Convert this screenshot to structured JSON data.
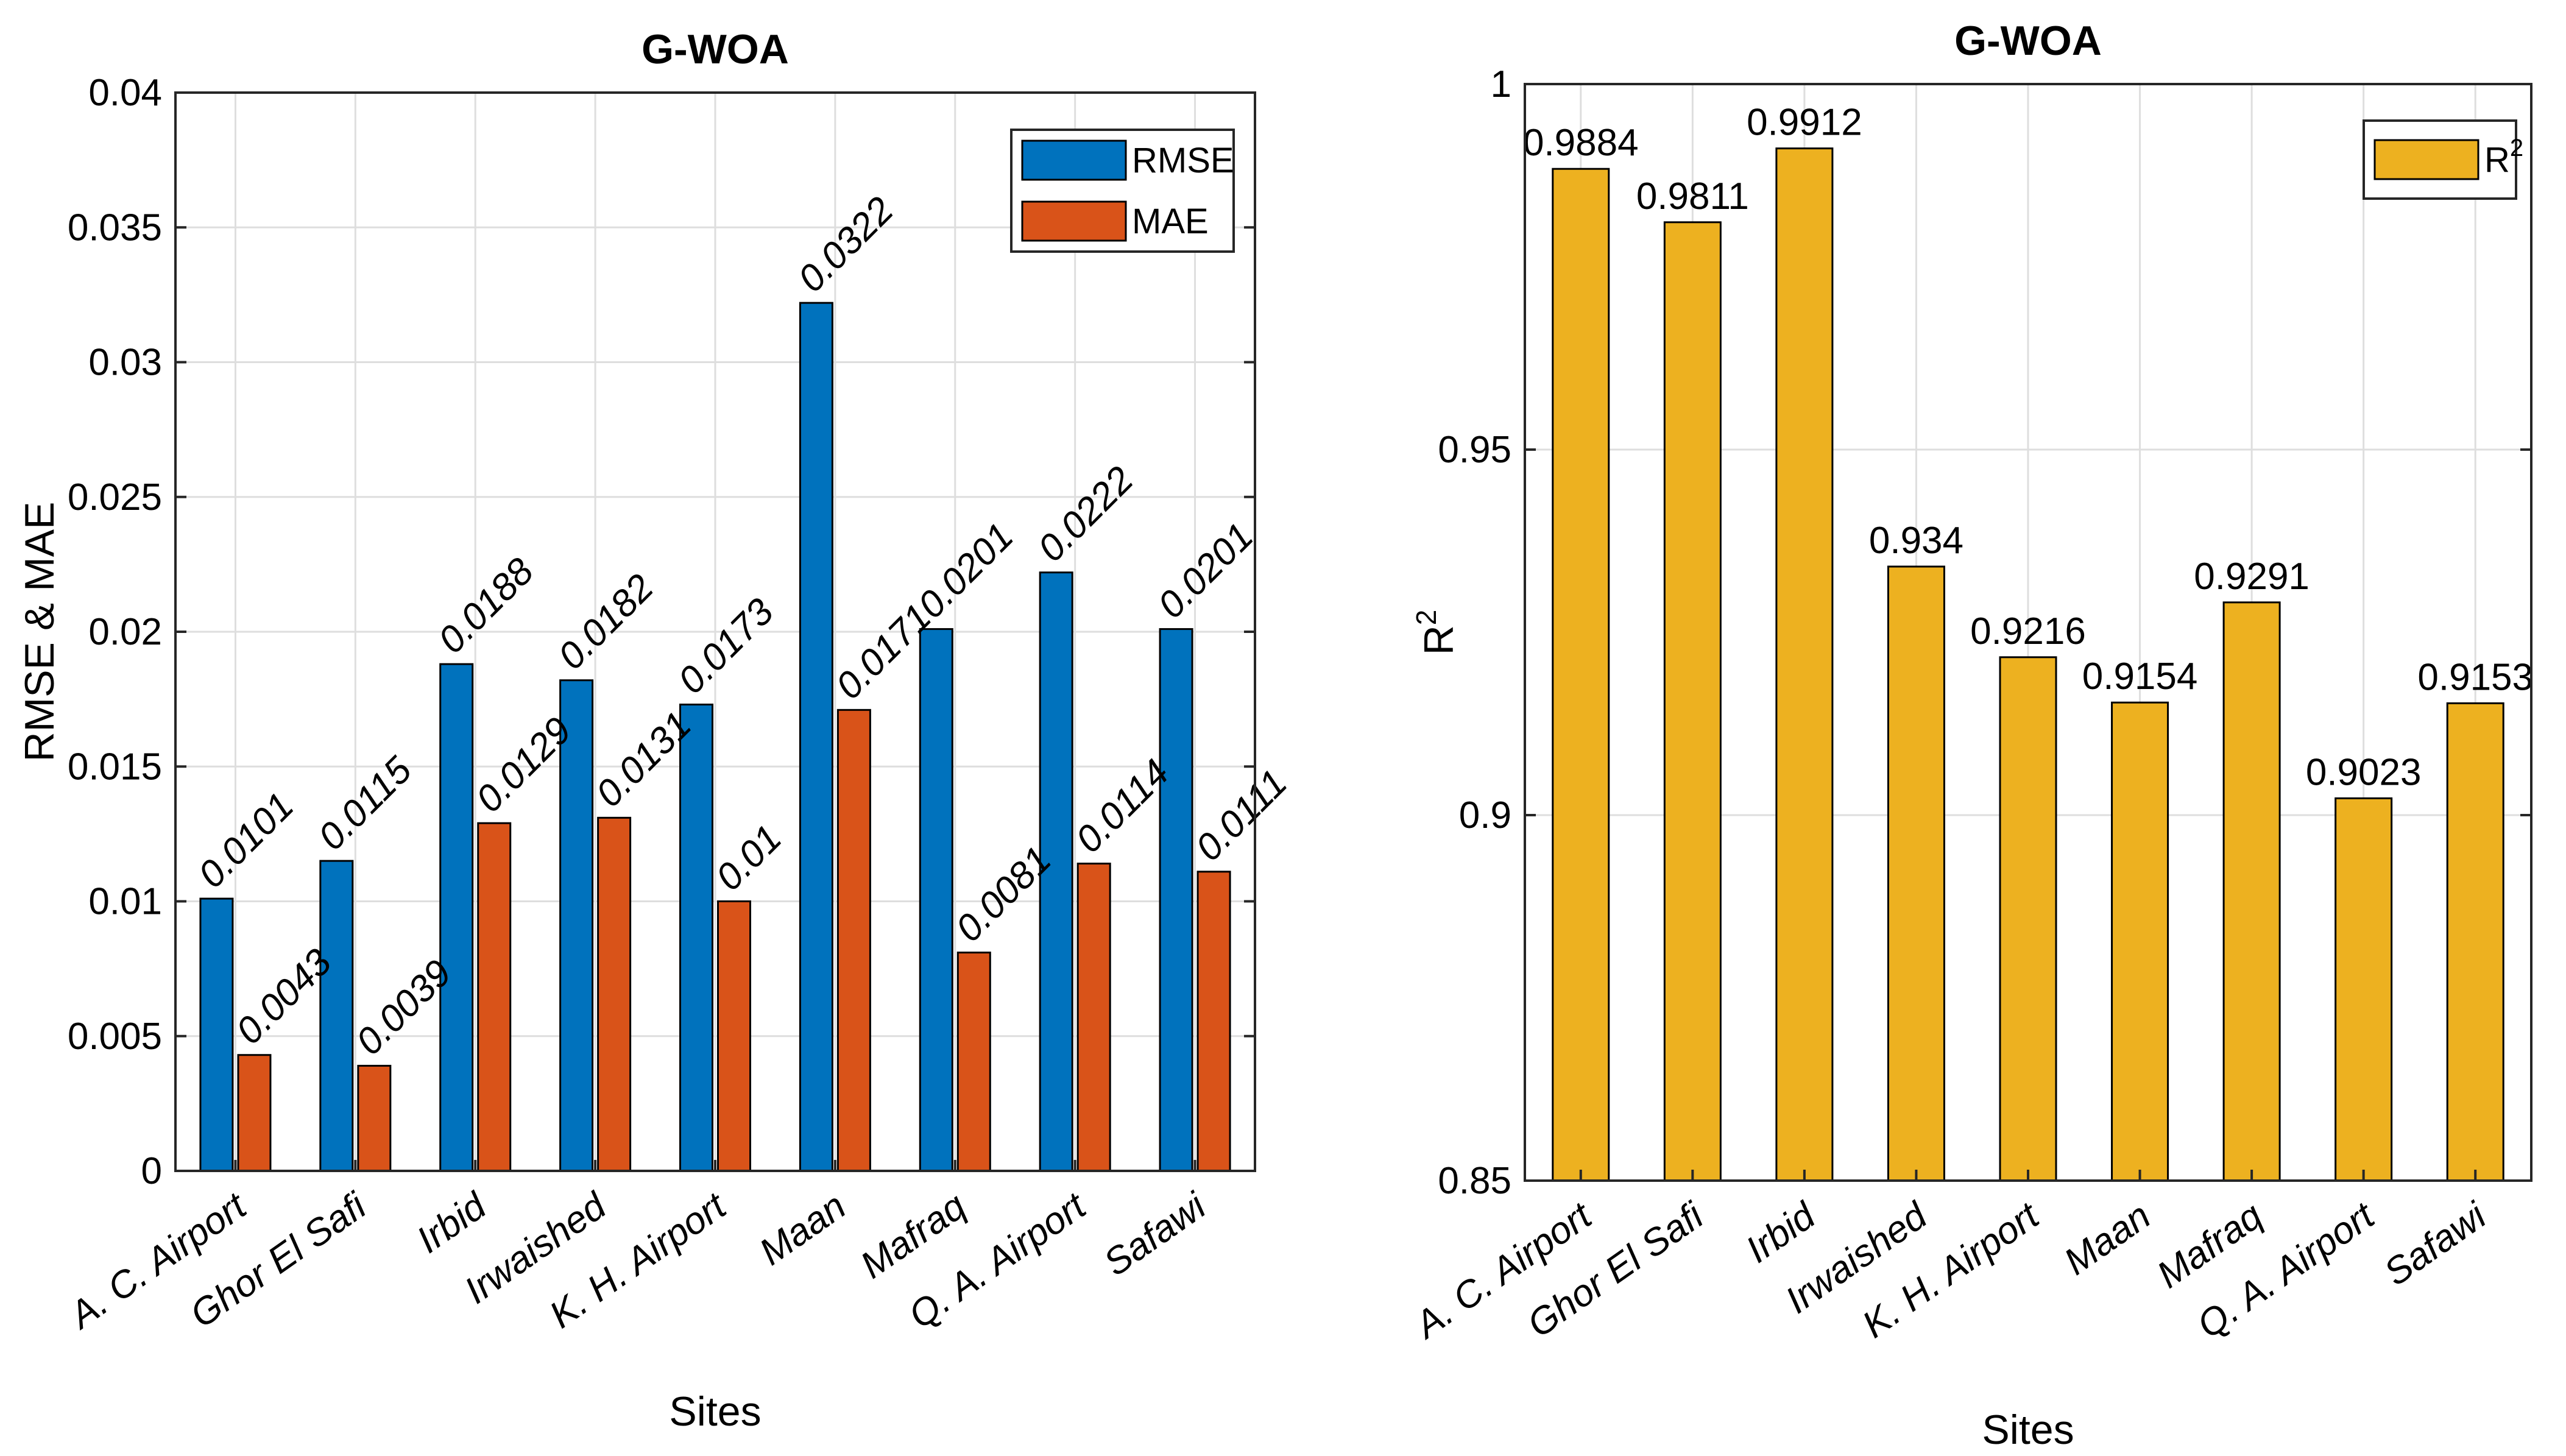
{
  "chart_data": [
    {
      "type": "bar",
      "title": "G-WOA",
      "xlabel": "Sites",
      "ylabel": "RMSE & MAE",
      "ylim": [
        0,
        0.04
      ],
      "yticks": [
        "0",
        "0.005",
        "0.01",
        "0.015",
        "0.02",
        "0.025",
        "0.03",
        "0.035",
        "0.04"
      ],
      "grid": true,
      "legend_position": "top-right",
      "categories": [
        "A. C. Airport",
        "Ghor El Safi",
        "Irbid",
        "Irwaished",
        "K. H. Airport",
        "Maan",
        "Mafraq",
        "Q. A. Airport",
        "Safawi"
      ],
      "series": [
        {
          "name": "RMSE",
          "color": "#0072BD",
          "values": [
            0.0101,
            0.0115,
            0.0188,
            0.0182,
            0.0173,
            0.0322,
            0.0201,
            0.0222,
            0.0201
          ],
          "labels": [
            "0.0101",
            "0.0115",
            "0.0188",
            "0.0182",
            "0.0173",
            "0.0322",
            "0.0201",
            "0.0222",
            "0.0201"
          ]
        },
        {
          "name": "MAE",
          "color": "#D95319",
          "values": [
            0.0043,
            0.0039,
            0.0129,
            0.0131,
            0.01,
            0.0171,
            0.0081,
            0.0114,
            0.0111
          ],
          "labels": [
            "0.0043",
            "0.0039",
            "0.0129",
            "0.0131",
            "0.01",
            "0.0171",
            "0.0081",
            "0.0114",
            "0.0111"
          ]
        }
      ]
    },
    {
      "type": "bar",
      "title": "G-WOA",
      "xlabel": "Sites",
      "ylabel": "R",
      "ylabel_sup": "2",
      "ylim": [
        0.85,
        1
      ],
      "yticks": [
        "0.85",
        "0.9",
        "0.95",
        "1"
      ],
      "grid": true,
      "legend_position": "top-right",
      "categories": [
        "A. C. Airport",
        "Ghor El Safi",
        "Irbid",
        "Irwaished",
        "K. H. Airport",
        "Maan",
        "Mafraq",
        "Q. A. Airport",
        "Safawi"
      ],
      "series": [
        {
          "name": "R",
          "name_sup": "2",
          "color": "#EDB120",
          "values": [
            0.9884,
            0.9811,
            0.9912,
            0.934,
            0.9216,
            0.9154,
            0.9291,
            0.9023,
            0.9153
          ],
          "labels": [
            "0.9884",
            "0.9811",
            "0.9912",
            "0.934",
            "0.9216",
            "0.9154",
            "0.9291",
            "0.9023",
            "0.9153"
          ]
        }
      ]
    }
  ]
}
